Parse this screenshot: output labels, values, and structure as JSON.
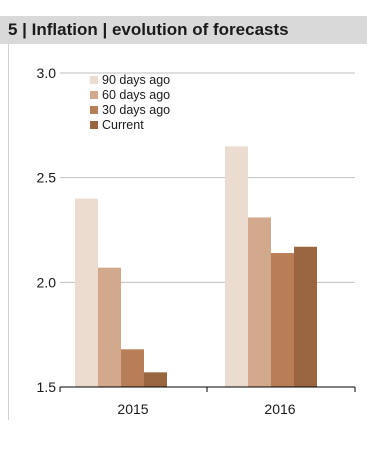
{
  "header": {
    "title": "5 | Inflation | evolution of forecasts"
  },
  "colors": {
    "header_bg": "#d9d9d9",
    "grid": "#bfbfbf",
    "series": [
      "#ecdccf",
      "#d2a98d",
      "#b97e58",
      "#9a6640"
    ]
  },
  "chart_data": {
    "type": "bar",
    "title": "5 | Inflation | evolution of forecasts",
    "categories": [
      "2015",
      "2016"
    ],
    "series": [
      {
        "name": "90 days ago",
        "values": [
          2.4,
          2.65
        ]
      },
      {
        "name": "60 days ago",
        "values": [
          2.07,
          2.31
        ]
      },
      {
        "name": "30 days ago",
        "values": [
          1.68,
          2.14
        ]
      },
      {
        "name": "Current",
        "values": [
          1.57,
          2.17
        ]
      }
    ],
    "ylim": [
      1.5,
      3.0
    ],
    "yticks": [
      "3.0",
      "2.5",
      "2.0",
      "1.5"
    ],
    "ytick_values": [
      3.0,
      2.5,
      2.0,
      1.5
    ],
    "xlabel": "",
    "ylabel": "",
    "grid": true,
    "legend": "top-left"
  }
}
